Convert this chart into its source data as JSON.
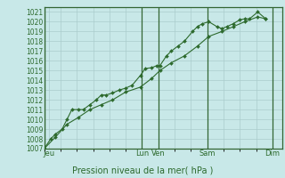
{
  "title": "",
  "xlabel": "Pression niveau de la mer( hPa )",
  "bg_color": "#c8e8e8",
  "grid_color": "#aacccc",
  "line_color": "#2d6a2d",
  "marker_color": "#2d6a2d",
  "spine_color": "#336633",
  "ylim": [
    1007,
    1021.5
  ],
  "yticks": [
    1007,
    1008,
    1009,
    1010,
    1011,
    1012,
    1013,
    1014,
    1015,
    1016,
    1017,
    1018,
    1019,
    1020,
    1021
  ],
  "day_labels": [
    "Jeu",
    "",
    "Lun",
    "Ven",
    "",
    "Sam",
    "",
    "Dim"
  ],
  "day_positions": [
    0.0,
    1.5,
    3.0,
    3.5,
    4.5,
    5.0,
    6.5,
    7.0
  ],
  "vline_positions": [
    0.0,
    3.0,
    3.5,
    5.0,
    7.0
  ],
  "xlim": [
    0.0,
    7.3
  ],
  "series1": [
    [
      0.0,
      1007.0
    ],
    [
      0.2,
      1008.0
    ],
    [
      0.35,
      1008.5
    ],
    [
      0.55,
      1009.0
    ],
    [
      0.7,
      1010.0
    ],
    [
      0.85,
      1011.0
    ],
    [
      1.05,
      1011.0
    ],
    [
      1.2,
      1011.0
    ],
    [
      1.4,
      1011.5
    ],
    [
      1.6,
      1012.0
    ],
    [
      1.75,
      1012.5
    ],
    [
      1.9,
      1012.5
    ],
    [
      2.1,
      1012.7
    ],
    [
      2.3,
      1013.0
    ],
    [
      2.5,
      1013.2
    ],
    [
      2.7,
      1013.5
    ],
    [
      2.95,
      1014.5
    ],
    [
      3.1,
      1015.2
    ],
    [
      3.3,
      1015.3
    ],
    [
      3.45,
      1015.5
    ],
    [
      3.55,
      1015.5
    ],
    [
      3.75,
      1016.5
    ],
    [
      3.9,
      1017.0
    ],
    [
      4.1,
      1017.5
    ],
    [
      4.3,
      1018.0
    ],
    [
      4.55,
      1019.0
    ],
    [
      4.7,
      1019.5
    ],
    [
      4.85,
      1019.8
    ],
    [
      5.05,
      1020.0
    ],
    [
      5.3,
      1019.5
    ],
    [
      5.45,
      1019.3
    ],
    [
      5.6,
      1019.5
    ],
    [
      5.8,
      1019.8
    ],
    [
      6.0,
      1020.2
    ],
    [
      6.15,
      1020.3
    ],
    [
      6.3,
      1020.3
    ],
    [
      6.55,
      1021.0
    ],
    [
      6.8,
      1020.3
    ]
  ],
  "series2": [
    [
      0.0,
      1007.0
    ],
    [
      0.35,
      1008.2
    ],
    [
      0.7,
      1009.5
    ],
    [
      1.05,
      1010.2
    ],
    [
      1.4,
      1011.0
    ],
    [
      1.75,
      1011.5
    ],
    [
      2.1,
      1012.0
    ],
    [
      2.5,
      1012.8
    ],
    [
      2.95,
      1013.3
    ],
    [
      3.3,
      1014.2
    ],
    [
      3.55,
      1015.0
    ],
    [
      3.9,
      1015.8
    ],
    [
      4.3,
      1016.5
    ],
    [
      4.7,
      1017.5
    ],
    [
      5.05,
      1018.5
    ],
    [
      5.45,
      1019.0
    ],
    [
      5.8,
      1019.5
    ],
    [
      6.15,
      1020.0
    ],
    [
      6.55,
      1020.5
    ],
    [
      6.8,
      1020.3
    ]
  ]
}
